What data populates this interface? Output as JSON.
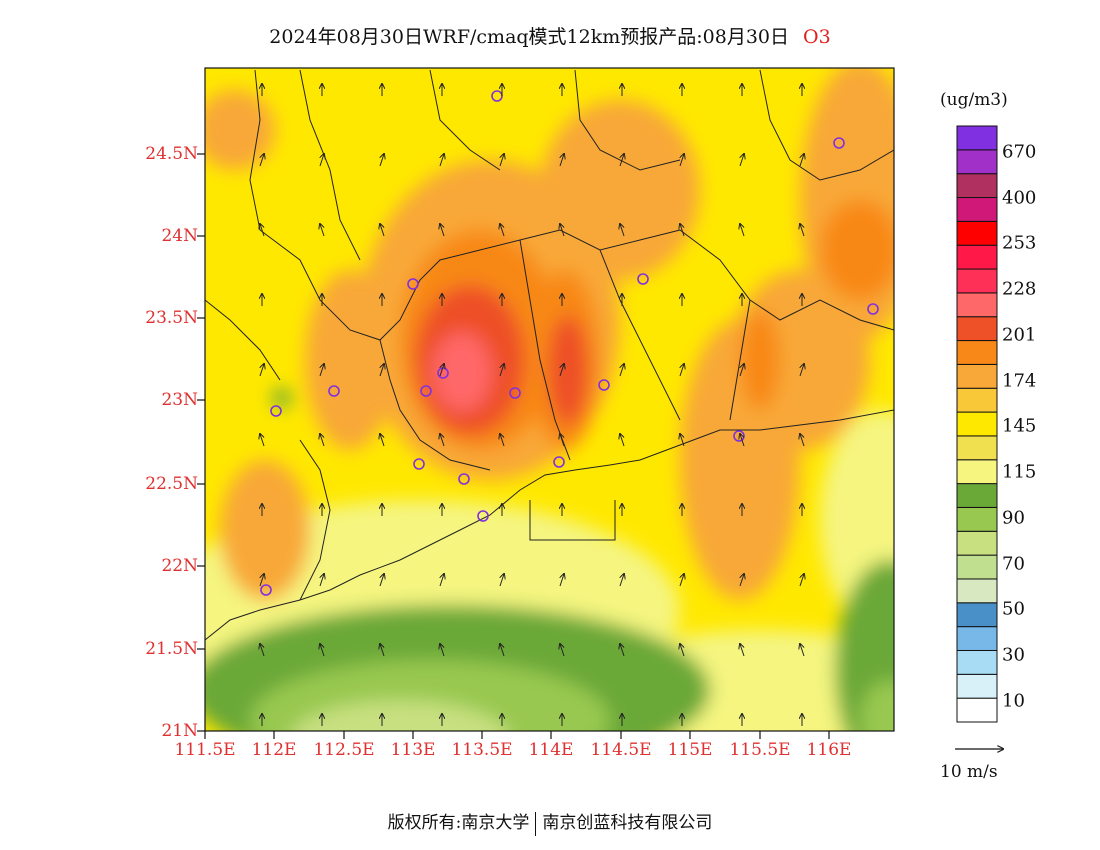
{
  "title": {
    "main": "2024年08月30日WRF/cmaq模式12km预报产品:08月30日",
    "species": "O3"
  },
  "axes": {
    "lat_labels": [
      "24.5N",
      "24N",
      "23.5N",
      "23N",
      "22.5N",
      "22N",
      "21.5N",
      "21N"
    ],
    "lon_labels": [
      "111.5E",
      "112E",
      "112.5E",
      "113E",
      "113.5E",
      "114E",
      "114.5E",
      "115E",
      "115.5E",
      "116E"
    ]
  },
  "legend": {
    "unit": "(ug/m3)",
    "colors": [
      "#ffffff",
      "#d8f0f8",
      "#a8dcf5",
      "#78b8e8",
      "#4a90c8",
      "#d8e8c0",
      "#c0e090",
      "#c8e080",
      "#98c850",
      "#6aa838",
      "#f5f580",
      "#f0e050",
      "#ffe800",
      "#f8c838",
      "#f8a838",
      "#f88818",
      "#ee5028",
      "#ff6868",
      "#ff3058",
      "#ff1848",
      "#ff0000",
      "#d01878",
      "#b03060",
      "#a030c8",
      "#8030e0"
    ],
    "labels": [
      "10",
      "30",
      "50",
      "70",
      "90",
      "115",
      "145",
      "174",
      "201",
      "228",
      "253",
      "400",
      "670"
    ]
  },
  "vector_scale": {
    "label": "10  m/s"
  },
  "copyright": {
    "left": "版权所有:南京大学",
    "right": "南京创蓝科技有限公司"
  }
}
